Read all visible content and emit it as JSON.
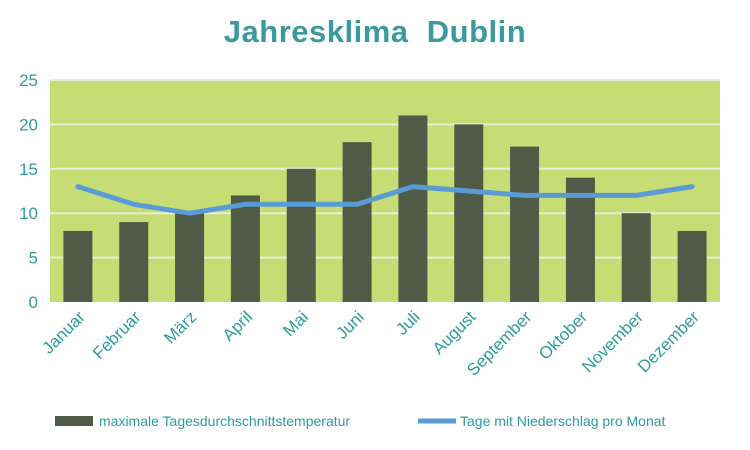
{
  "colors": {
    "title": "#3a9aa0",
    "tick": "#2e9c9c",
    "plot_background": "#c5dd74",
    "grid": "#e8edd9",
    "bar": "#4f5a47",
    "line": "#5b9bd5",
    "legend_text": "#2e9c9c"
  },
  "chart_data": {
    "type": "bar",
    "title": "Jahresklima  Dublin",
    "xlabel": "",
    "ylabel": "",
    "ylim": [
      0,
      25
    ],
    "yticks": [
      "0",
      "5",
      "10",
      "15",
      "20",
      "25"
    ],
    "grid": true,
    "legend_position": "bottom",
    "categories": [
      "Januar",
      "Februar",
      "März",
      "April",
      "Mai",
      "Juni",
      "Juli",
      "August",
      "September",
      "Oktober",
      "November",
      "Dezember"
    ],
    "series": [
      {
        "name": "maximale Tagesdurchschnittstemperatur",
        "type": "bar",
        "values": [
          8,
          9,
          10,
          12,
          15,
          18,
          21,
          20,
          17.5,
          14,
          10,
          8
        ]
      },
      {
        "name": "Tage mit Niederschlag pro Monat",
        "type": "line",
        "values": [
          13,
          11,
          10,
          11,
          11,
          11,
          13,
          12.5,
          12,
          12,
          12,
          13
        ]
      }
    ]
  }
}
